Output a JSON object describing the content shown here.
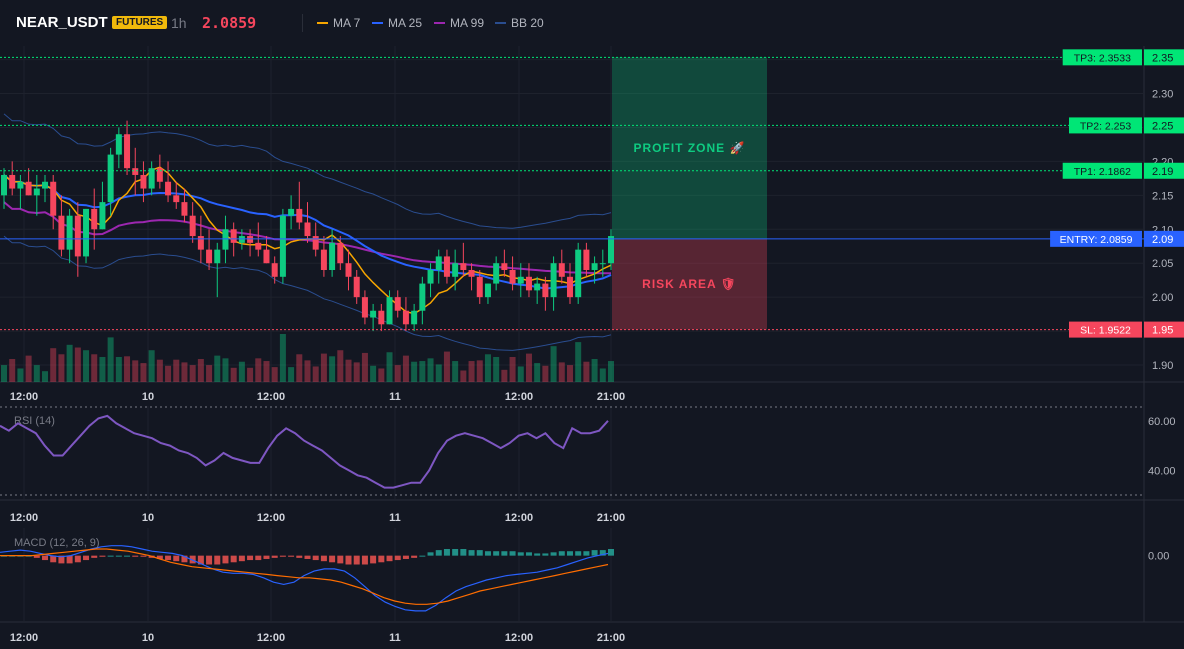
{
  "header": {
    "symbol": "NEAR_USDT",
    "badge": "FUTURES",
    "timeframe": "1h",
    "price": "2.0859"
  },
  "legend": [
    {
      "label": "MA 7",
      "color": "#f7a600"
    },
    {
      "label": "MA 25",
      "color": "#2962ff"
    },
    {
      "label": "MA 99",
      "color": "#9c27b0"
    },
    {
      "label": "BB 20",
      "color": "#2a4d8f"
    }
  ],
  "colors": {
    "up": "#0ecb81",
    "down": "#f6465d",
    "tp": "#00e676",
    "sl": "#f6465d",
    "entry": "#2962ff"
  },
  "chart_data": [
    {
      "type": "candlestick",
      "title": "",
      "x_ticks": [
        "12:00",
        "10",
        "12:00",
        "11",
        "12:00",
        "21:00"
      ],
      "y_ticks": [
        "1.90",
        "1.95",
        "2.00",
        "2.05",
        "2.10",
        "2.15",
        "2.20",
        "2.25",
        "2.30",
        "2.35"
      ],
      "ylim": [
        1.875,
        2.37
      ],
      "ohlc": [
        [
          2.15,
          2.19,
          2.13,
          2.18
        ],
        [
          2.18,
          2.2,
          2.15,
          2.16
        ],
        [
          2.16,
          2.18,
          2.13,
          2.17
        ],
        [
          2.17,
          2.19,
          2.15,
          2.15
        ],
        [
          2.15,
          2.18,
          2.12,
          2.16
        ],
        [
          2.16,
          2.18,
          2.14,
          2.17
        ],
        [
          2.17,
          2.18,
          2.1,
          2.12
        ],
        [
          2.12,
          2.15,
          2.06,
          2.07
        ],
        [
          2.07,
          2.13,
          2.05,
          2.12
        ],
        [
          2.12,
          2.14,
          2.03,
          2.06
        ],
        [
          2.06,
          2.13,
          2.05,
          2.13
        ],
        [
          2.13,
          2.16,
          2.07,
          2.1
        ],
        [
          2.1,
          2.17,
          2.1,
          2.14
        ],
        [
          2.14,
          2.22,
          2.12,
          2.21
        ],
        [
          2.21,
          2.25,
          2.19,
          2.24
        ],
        [
          2.24,
          2.26,
          2.18,
          2.19
        ],
        [
          2.19,
          2.22,
          2.15,
          2.18
        ],
        [
          2.18,
          2.2,
          2.14,
          2.16
        ],
        [
          2.16,
          2.2,
          2.15,
          2.19
        ],
        [
          2.19,
          2.21,
          2.16,
          2.17
        ],
        [
          2.17,
          2.2,
          2.14,
          2.15
        ],
        [
          2.15,
          2.17,
          2.13,
          2.14
        ],
        [
          2.14,
          2.16,
          2.11,
          2.12
        ],
        [
          2.12,
          2.14,
          2.08,
          2.09
        ],
        [
          2.09,
          2.12,
          2.05,
          2.07
        ],
        [
          2.07,
          2.1,
          2.04,
          2.05
        ],
        [
          2.05,
          2.08,
          2.0,
          2.07
        ],
        [
          2.07,
          2.12,
          2.05,
          2.1
        ],
        [
          2.1,
          2.11,
          2.06,
          2.08
        ],
        [
          2.08,
          2.1,
          2.07,
          2.09
        ],
        [
          2.09,
          2.1,
          2.06,
          2.08
        ],
        [
          2.08,
          2.11,
          2.06,
          2.07
        ],
        [
          2.07,
          2.09,
          2.05,
          2.05
        ],
        [
          2.05,
          2.06,
          2.02,
          2.03
        ],
        [
          2.03,
          2.13,
          2.02,
          2.12
        ],
        [
          2.12,
          2.15,
          2.1,
          2.13
        ],
        [
          2.13,
          2.17,
          2.1,
          2.11
        ],
        [
          2.11,
          2.14,
          2.08,
          2.09
        ],
        [
          2.09,
          2.11,
          2.06,
          2.07
        ],
        [
          2.07,
          2.09,
          2.03,
          2.04
        ],
        [
          2.04,
          2.1,
          2.03,
          2.08
        ],
        [
          2.08,
          2.09,
          2.04,
          2.05
        ],
        [
          2.05,
          2.07,
          2.01,
          2.03
        ],
        [
          2.03,
          2.04,
          1.99,
          2.0
        ],
        [
          2.0,
          2.01,
          1.96,
          1.97
        ],
        [
          1.97,
          1.99,
          1.95,
          1.98
        ],
        [
          1.98,
          1.99,
          1.95,
          1.96
        ],
        [
          1.96,
          2.01,
          1.96,
          2.0
        ],
        [
          2.0,
          2.01,
          1.97,
          1.98
        ],
        [
          1.98,
          2.0,
          1.95,
          1.96
        ],
        [
          1.96,
          1.99,
          1.95,
          1.98
        ],
        [
          1.98,
          2.03,
          1.96,
          2.02
        ],
        [
          2.02,
          2.05,
          2.0,
          2.04
        ],
        [
          2.04,
          2.07,
          2.02,
          2.06
        ],
        [
          2.06,
          2.07,
          2.02,
          2.03
        ],
        [
          2.03,
          2.07,
          2.01,
          2.05
        ],
        [
          2.05,
          2.08,
          2.03,
          2.04
        ],
        [
          2.04,
          2.05,
          2.01,
          2.03
        ],
        [
          2.03,
          2.04,
          1.99,
          2.0
        ],
        [
          2.0,
          2.02,
          1.99,
          2.02
        ],
        [
          2.02,
          2.06,
          2.01,
          2.05
        ],
        [
          2.05,
          2.07,
          2.03,
          2.04
        ],
        [
          2.04,
          2.06,
          2.01,
          2.02
        ],
        [
          2.02,
          2.05,
          2.0,
          2.03
        ],
        [
          2.03,
          2.05,
          2.0,
          2.01
        ],
        [
          2.01,
          2.03,
          1.99,
          2.02
        ],
        [
          2.02,
          2.03,
          1.98,
          2.0
        ],
        [
          2.0,
          2.06,
          1.98,
          2.05
        ],
        [
          2.05,
          2.07,
          2.02,
          2.03
        ],
        [
          2.03,
          2.05,
          1.99,
          2.0
        ],
        [
          2.0,
          2.08,
          1.99,
          2.07
        ],
        [
          2.07,
          2.08,
          2.03,
          2.04
        ],
        [
          2.04,
          2.06,
          2.02,
          2.05
        ],
        [
          2.05,
          2.07,
          2.03,
          2.05
        ],
        [
          2.05,
          2.1,
          2.04,
          2.09
        ]
      ],
      "levels": [
        {
          "label": "TP3: 2.3533",
          "axis_label": "2.35",
          "value": 2.3533,
          "kind": "tp"
        },
        {
          "label": "TP2: 2.253",
          "axis_label": "2.25",
          "value": 2.253,
          "kind": "tp"
        },
        {
          "label": "TP1: 2.1862",
          "axis_label": "2.19",
          "value": 2.1862,
          "kind": "tp"
        },
        {
          "label": "ENTRY: 2.0859",
          "axis_label": "2.09",
          "value": 2.0859,
          "kind": "entry"
        },
        {
          "label": "SL: 1.9522",
          "axis_label": "1.95",
          "value": 1.9522,
          "kind": "sl"
        }
      ],
      "profit_zone": {
        "label": "PROFIT ZONE 🚀",
        "from": 2.0859,
        "to": 2.3533
      },
      "risk_zone": {
        "label": "RISK AREA 🛡",
        "from": 1.9522,
        "to": 2.0859
      }
    },
    {
      "type": "line",
      "title": "RSI (14)",
      "x_ticks": [
        "12:00",
        "10",
        "12:00",
        "11",
        "12:00",
        "21:00"
      ],
      "y_ticks": [
        "40.00",
        "60.00"
      ],
      "ylim": [
        28,
        66
      ],
      "guide_levels": [
        30,
        70
      ],
      "values": [
        58,
        56,
        59,
        57,
        55,
        50,
        46,
        46,
        50,
        54,
        58,
        61,
        62,
        59,
        57,
        55,
        54,
        53,
        51,
        50,
        48,
        47,
        45,
        42,
        44,
        47,
        45,
        44,
        43,
        43,
        49,
        54,
        57,
        55,
        52,
        50,
        48,
        45,
        42,
        40,
        38,
        37,
        35,
        33,
        33,
        34,
        35,
        35,
        40,
        47,
        52,
        54,
        55,
        54,
        53,
        51,
        49,
        51,
        54,
        55,
        53,
        55,
        51,
        49,
        57,
        55,
        55,
        56,
        60
      ]
    },
    {
      "type": "bar",
      "title": "MACD (12, 26, 9)",
      "x_ticks": [
        "12:00",
        "10",
        "12:00",
        "11",
        "12:00",
        "21:00"
      ],
      "y_ticks": [
        "0.00"
      ],
      "ylim": [
        -0.06,
        0.025
      ],
      "histogram": [
        0,
        0,
        0,
        0,
        -0.002,
        -0.004,
        -0.006,
        -0.007,
        -0.007,
        -0.006,
        -0.004,
        -0.002,
        -0.001,
        0,
        0,
        0,
        -0.001,
        -0.001,
        -0.002,
        -0.003,
        -0.004,
        -0.005,
        -0.006,
        -0.007,
        -0.008,
        -0.008,
        -0.008,
        -0.007,
        -0.006,
        -0.005,
        -0.004,
        -0.004,
        -0.003,
        -0.002,
        -0.001,
        -0.001,
        -0.002,
        -0.003,
        -0.004,
        -0.005,
        -0.006,
        -0.007,
        -0.008,
        -0.008,
        -0.008,
        -0.007,
        -0.006,
        -0.005,
        -0.004,
        -0.003,
        -0.002,
        0,
        0.003,
        0.005,
        0.006,
        0.006,
        0.006,
        0.005,
        0.005,
        0.004,
        0.004,
        0.004,
        0.004,
        0.003,
        0.003,
        0.002,
        0.002,
        0.003,
        0.004,
        0.004,
        0.004,
        0.004,
        0.005,
        0.005,
        0.006
      ],
      "macd_line": [
        0.003,
        0.004,
        0.005,
        0.004,
        0.002,
        0,
        -0.001,
        0,
        0.003,
        0.006,
        0.008,
        0.009,
        0.009,
        0.008,
        0.006,
        0.004,
        0.003,
        0.002,
        0,
        -0.004,
        -0.008,
        -0.012,
        -0.015,
        -0.016,
        -0.016,
        -0.017,
        -0.02,
        -0.024,
        -0.026,
        -0.024,
        -0.018,
        -0.014,
        -0.012,
        -0.012,
        -0.014,
        -0.02,
        -0.028,
        -0.036,
        -0.042,
        -0.046,
        -0.049,
        -0.05,
        -0.05,
        -0.045,
        -0.038,
        -0.032,
        -0.028,
        -0.025,
        -0.022,
        -0.02,
        -0.018,
        -0.017,
        -0.016,
        -0.015,
        -0.013,
        -0.011,
        -0.008,
        -0.005,
        -0.002,
        0,
        0.002
      ],
      "signal_line": [
        0,
        0,
        0,
        0,
        0.001,
        0.002,
        0.003,
        0.004,
        0.005,
        0.006,
        0.006,
        0.005,
        0.004,
        0.002,
        0,
        -0.003,
        -0.006,
        -0.008,
        -0.01,
        -0.011,
        -0.012,
        -0.013,
        -0.014,
        -0.015,
        -0.016,
        -0.017,
        -0.018,
        -0.019,
        -0.02,
        -0.02,
        -0.021,
        -0.022,
        -0.024,
        -0.027,
        -0.03,
        -0.034,
        -0.038,
        -0.041,
        -0.043,
        -0.044,
        -0.044,
        -0.043,
        -0.041,
        -0.038,
        -0.035,
        -0.032,
        -0.03,
        -0.028,
        -0.026,
        -0.024,
        -0.022,
        -0.02,
        -0.018,
        -0.016,
        -0.014,
        -0.012,
        -0.01,
        -0.008
      ]
    }
  ]
}
